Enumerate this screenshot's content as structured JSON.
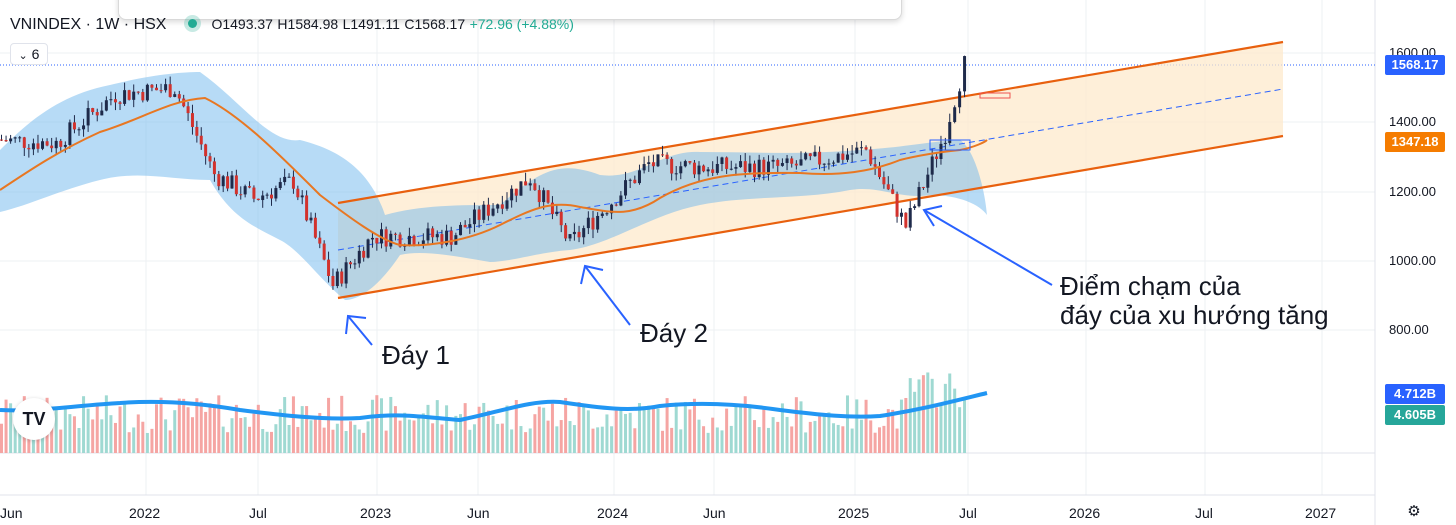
{
  "header": {
    "symbol": "VNINDEX · 1W · HSX",
    "open": "O1493.37",
    "high": "H1584.98",
    "low": "L1491.11",
    "close": "C1568.17",
    "change": "+72.96 (+4.88%)"
  },
  "level_indicator": "6",
  "price_axis": {
    "ticks": [
      "1600.00",
      "1400.00",
      "1200.00",
      "1000.00",
      "800.00"
    ],
    "last_price": "1568.17",
    "ma_value": "1347.18",
    "volume_label": "4.712B",
    "volume_ma_label": "4.605B"
  },
  "time_axis": {
    "labels": [
      "Jun",
      "2022",
      "Jul",
      "2023",
      "Jun",
      "2024",
      "Jun",
      "2025",
      "Jul",
      "2026",
      "Jul",
      "2027"
    ]
  },
  "annotations": {
    "bottom1": "Đáy 1",
    "bottom2": "Đáy 2",
    "touch_line1": "Điểm chạm của",
    "touch_line2": "đáy của xu hướng tăng"
  },
  "colors": {
    "up": "#26a69a",
    "down": "#ef5350",
    "ma": "#e87722",
    "channel": "#e8600e",
    "bollinger": "#42a5f5",
    "arrow": "#2962ff",
    "last_price_bg": "#2962ff",
    "ma_bg": "#f57c00",
    "volume_bg": "#2962ff",
    "volume_ma_bg": "#26a69a"
  },
  "icons": [
    "tradingview-logo-icon",
    "gear-icon",
    "drawing-toolbar"
  ],
  "chart_data": {
    "type": "candlestick",
    "title": "",
    "y_range": [
      750,
      1650
    ],
    "price_path": [
      {
        "x": "2021-06",
        "y": 1350
      },
      {
        "x": "2021-09",
        "y": 1340
      },
      {
        "x": "2021-12",
        "y": 1480
      },
      {
        "x": "2022-03",
        "y": 1500
      },
      {
        "x": "2022-05",
        "y": 1250
      },
      {
        "x": "2022-07",
        "y": 1180
      },
      {
        "x": "2022-09",
        "y": 1230
      },
      {
        "x": "2022-11",
        "y": 930
      },
      {
        "x": "2023-01",
        "y": 1070
      },
      {
        "x": "2023-05",
        "y": 1070
      },
      {
        "x": "2023-09",
        "y": 1240
      },
      {
        "x": "2023-11",
        "y": 1050
      },
      {
        "x": "2024-03",
        "y": 1280
      },
      {
        "x": "2024-06",
        "y": 1270
      },
      {
        "x": "2024-10",
        "y": 1270
      },
      {
        "x": "2025-02",
        "y": 1320
      },
      {
        "x": "2025-04",
        "y": 1100
      },
      {
        "x": "2025-06",
        "y": 1370
      },
      {
        "x": "2025-07",
        "y": 1568
      }
    ],
    "channel_lines": [
      "upper",
      "middle (dashed)",
      "lower"
    ],
    "volume_ma_last": 4.605,
    "volume_last": 4.712
  }
}
